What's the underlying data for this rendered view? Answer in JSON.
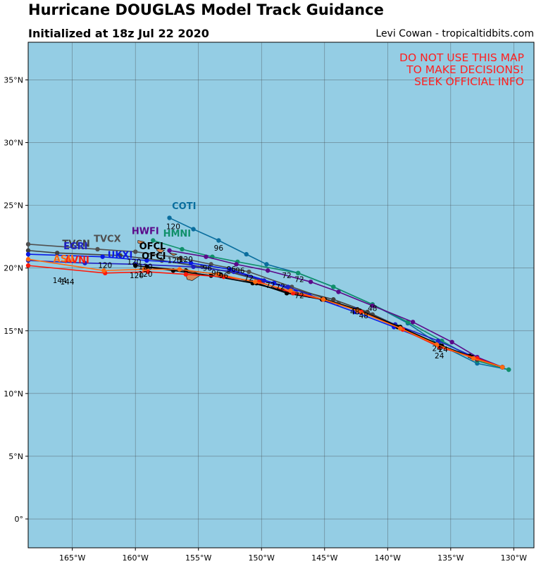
{
  "title": "Hurricane DOUGLAS Model Track Guidance",
  "subtitle": "Initialized at 18z Jul 22 2020",
  "credit": "Levi Cowan - tropicaltidbits.com",
  "warning": [
    "DO NOT USE THIS MAP",
    "TO MAKE DECISIONS!",
    "SEEK OFFICIAL INFO"
  ],
  "colors": {
    "ocean": "#94cde4",
    "land": "#d98a58",
    "warning": "#ff2020"
  },
  "map_extent": {
    "lon": [
      -168.5,
      -128.4
    ],
    "lat": [
      -2.3,
      38.0
    ]
  },
  "lon_ticks": [
    {
      "value": -165,
      "label": "165°W"
    },
    {
      "value": -160,
      "label": "160°W"
    },
    {
      "value": -155,
      "label": "155°W"
    },
    {
      "value": -150,
      "label": "150°W"
    },
    {
      "value": -145,
      "label": "145°W"
    },
    {
      "value": -140,
      "label": "140°W"
    },
    {
      "value": -135,
      "label": "135°W"
    },
    {
      "value": -130,
      "label": "130°W"
    }
  ],
  "lat_ticks": [
    {
      "value": 0,
      "label": "0°"
    },
    {
      "value": 5,
      "label": "5°N"
    },
    {
      "value": 10,
      "label": "10°N"
    },
    {
      "value": 15,
      "label": "15°N"
    },
    {
      "value": 20,
      "label": "20°N"
    },
    {
      "value": 25,
      "label": "25°N"
    },
    {
      "value": 30,
      "label": "30°N"
    },
    {
      "value": 35,
      "label": "35°N"
    }
  ],
  "tracks": [
    {
      "name": "COTI",
      "color": "#0a6e9e",
      "name_at": [
        -157.1,
        24.7
      ],
      "points": [
        [
          -130.4,
          11.9
        ],
        [
          -132.9,
          12.4
        ],
        [
          -135.9,
          13.9
        ],
        [
          -138.4,
          15.6
        ],
        [
          -141.2,
          17.1
        ],
        [
          -144.3,
          18.5
        ],
        [
          -147.1,
          19.6
        ],
        [
          -149.6,
          20.3
        ],
        [
          -151.2,
          21.1
        ],
        [
          -153.4,
          22.2
        ],
        [
          -155.4,
          23.1
        ],
        [
          -157.3,
          24.0
        ]
      ],
      "labels": [
        {
          "text": "120",
          "at": [
            -157.0,
            23.1
          ]
        },
        {
          "text": "96",
          "at": [
            -153.4,
            21.4
          ]
        }
      ]
    },
    {
      "name": "HMNI",
      "color": "#10906a",
      "name_at": [
        -157.8,
        22.5
      ],
      "points": [
        [
          -130.4,
          11.9
        ],
        [
          -132.9,
          12.6
        ],
        [
          -135.7,
          14.2
        ],
        [
          -138.4,
          15.7
        ],
        [
          -141.2,
          17.1
        ],
        [
          -144.3,
          18.5
        ],
        [
          -147.1,
          19.6
        ],
        [
          -151.9,
          20.5
        ],
        [
          -153.9,
          20.9
        ],
        [
          -156.3,
          21.5
        ],
        [
          -158.6,
          22.2
        ]
      ],
      "labels": [
        {
          "text": "72",
          "at": [
            -147.0,
            18.9
          ]
        }
      ]
    },
    {
      "name": "HWFI",
      "color": "#5a0a8a",
      "name_at": [
        -160.3,
        22.7
      ],
      "points": [
        [
          -130.9,
          12.1
        ],
        [
          -132.9,
          12.9
        ],
        [
          -134.9,
          14.1
        ],
        [
          -138.0,
          15.7
        ],
        [
          -141.2,
          17.0
        ],
        [
          -143.9,
          18.1
        ],
        [
          -146.1,
          18.9
        ],
        [
          -149.5,
          19.8
        ],
        [
          -152.0,
          20.3
        ],
        [
          -154.4,
          20.9
        ],
        [
          -157.3,
          21.4
        ]
      ],
      "labels": [
        {
          "text": "120",
          "at": [
            -156.9,
            20.4
          ]
        },
        {
          "text": "72",
          "at": [
            -148.0,
            19.2
          ]
        }
      ]
    },
    {
      "name": "TVCX",
      "color": "#505050",
      "name_at": [
        -163.3,
        22.1
      ],
      "points": [
        [
          -130.9,
          12.1
        ],
        [
          -132.9,
          12.7
        ],
        [
          -135.9,
          13.8
        ],
        [
          -139.2,
          15.3
        ],
        [
          -141.2,
          16.3
        ],
        [
          -143.9,
          17.2
        ],
        [
          -147.6,
          18.5
        ],
        [
          -151.0,
          19.7
        ],
        [
          -154.0,
          20.3
        ],
        [
          -156.4,
          20.8
        ],
        [
          -160.0,
          21.3
        ],
        [
          -163.0,
          21.5
        ],
        [
          -168.5,
          21.9
        ]
      ],
      "labels": [
        {
          "text": "120",
          "at": [
            -156.0,
            20.5
          ]
        },
        {
          "text": "96",
          "at": [
            -151.7,
            19.6
          ]
        }
      ]
    },
    {
      "name": "TVCN",
      "color": "#404040",
      "name_at": [
        -165.8,
        21.7
      ],
      "points": [
        [
          -130.9,
          12.1
        ],
        [
          -132.9,
          12.7
        ],
        [
          -135.9,
          13.8
        ],
        [
          -139.0,
          15.3
        ],
        [
          -141.6,
          16.5
        ],
        [
          -144.3,
          17.5
        ],
        [
          -147.8,
          18.4
        ],
        [
          -150.0,
          19.0
        ],
        [
          -152.6,
          19.7
        ],
        [
          -154.7,
          20.1
        ],
        [
          -157.9,
          20.6
        ],
        [
          -161.2,
          21.0
        ],
        [
          -166.2,
          21.2
        ],
        [
          -168.5,
          21.4
        ]
      ],
      "labels": [
        {
          "text": "96",
          "at": [
            -153.0,
            19.2
          ]
        }
      ]
    },
    {
      "name": "EGRI",
      "color": "#2020c0",
      "name_at": [
        -165.7,
        21.5
      ],
      "points": [
        [
          -130.9,
          12.1
        ],
        [
          -132.9,
          12.8
        ],
        [
          -136.0,
          14.2
        ],
        [
          -139.4,
          15.5
        ],
        [
          -142.6,
          16.7
        ],
        [
          -145.2,
          17.5
        ],
        [
          -147.9,
          18.5
        ],
        [
          -149.8,
          19.0
        ],
        [
          -152.2,
          19.7
        ],
        [
          -155.4,
          20.1
        ],
        [
          -160.0,
          20.3
        ],
        [
          -164.0,
          20.4
        ],
        [
          -168.5,
          20.6
        ]
      ],
      "labels": [
        {
          "text": "72",
          "at": [
            -148.5,
            18.3
          ]
        }
      ]
    },
    {
      "name": "UKXI",
      "color": "#0a1ae6",
      "name_at": [
        -162.2,
        20.8
      ],
      "points": [
        [
          -130.9,
          12.1
        ],
        [
          -132.9,
          12.8
        ],
        [
          -136.0,
          13.9
        ],
        [
          -139.5,
          15.3
        ],
        [
          -142.6,
          16.5
        ],
        [
          -146.2,
          17.8
        ],
        [
          -147.3,
          18.1
        ],
        [
          -149.0,
          18.8
        ],
        [
          -152.5,
          19.9
        ],
        [
          -155.6,
          20.4
        ],
        [
          -159.1,
          20.6
        ],
        [
          -162.6,
          20.9
        ],
        [
          -168.5,
          21.1
        ]
      ],
      "labels": [
        {
          "text": "120",
          "at": [
            -160.1,
            20.3
          ]
        }
      ]
    },
    {
      "name": "OFCL",
      "color": "#000000",
      "name_at": [
        -159.7,
        21.5
      ],
      "points": [
        [
          -130.9,
          12.1
        ],
        [
          -133.5,
          13.0
        ],
        [
          -135.8,
          13.8
        ],
        [
          -139.2,
          15.3
        ],
        [
          -142.4,
          16.7
        ],
        [
          -145.0,
          17.5
        ],
        [
          -147.5,
          18.0
        ],
        [
          -150.7,
          18.8
        ],
        [
          -154.0,
          19.4
        ],
        [
          -157.0,
          19.8
        ],
        [
          -160.0,
          20.2
        ]
      ],
      "labels": [
        {
          "text": "120",
          "at": [
            -159.2,
            19.9
          ]
        },
        {
          "text": "72",
          "at": [
            -147.0,
            17.6
          ]
        }
      ]
    },
    {
      "name": "OFCI",
      "color": "#000000",
      "name_at": [
        -159.5,
        20.7
      ],
      "points": [
        [
          -130.9,
          12.1
        ],
        [
          -133.3,
          12.9
        ],
        [
          -135.7,
          13.8
        ],
        [
          -139.0,
          15.3
        ],
        [
          -142.2,
          16.6
        ],
        [
          -145.2,
          17.5
        ],
        [
          -148.0,
          18.0
        ],
        [
          -150.4,
          18.8
        ],
        [
          -153.3,
          19.5
        ],
        [
          -156.0,
          19.8
        ],
        [
          -159.1,
          20.1
        ]
      ],
      "labels": [
        {
          "text": "120",
          "at": [
            -159.9,
            19.2
          ]
        },
        {
          "text": "72",
          "at": [
            -149.3,
            18.4
          ]
        }
      ]
    },
    {
      "name": "AVNI",
      "color": "#ff1a0a",
      "name_at": [
        -165.6,
        20.4
      ],
      "points": [
        [
          -130.9,
          12.1
        ],
        [
          -132.9,
          12.8
        ],
        [
          -135.9,
          13.7
        ],
        [
          -138.8,
          15.1
        ],
        [
          -142.1,
          16.5
        ],
        [
          -145.1,
          17.5
        ],
        [
          -147.5,
          18.0
        ],
        [
          -150.2,
          18.9
        ],
        [
          -153.0,
          19.3
        ],
        [
          -156.0,
          19.5
        ],
        [
          -159.0,
          19.7
        ],
        [
          -162.4,
          19.6
        ],
        [
          -168.5,
          20.2
        ]
      ],
      "labels": [
        {
          "text": "144",
          "at": [
            -166.0,
            18.8
          ]
        },
        {
          "text": "120",
          "at": [
            -159.2,
            19.3
          ]
        },
        {
          "text": "96",
          "at": [
            -153.6,
            19.4
          ]
        }
      ]
    },
    {
      "name": "ASII",
      "color": "#ff6a10",
      "name_at": [
        -166.5,
        20.5
      ],
      "points": [
        [
          -130.9,
          12.1
        ],
        [
          -133.2,
          12.8
        ],
        [
          -136.1,
          13.9
        ],
        [
          -139.0,
          15.2
        ],
        [
          -142.4,
          16.6
        ],
        [
          -145.1,
          17.5
        ],
        [
          -147.7,
          18.2
        ],
        [
          -150.5,
          18.9
        ],
        [
          -153.5,
          19.5
        ],
        [
          -156.5,
          19.9
        ],
        [
          -159.3,
          19.9
        ],
        [
          -162.5,
          19.8
        ],
        [
          -168.5,
          20.7
        ]
      ],
      "labels": [
        {
          "text": "144",
          "at": [
            -165.4,
            18.7
          ]
        },
        {
          "text": "120",
          "at": [
            -162.4,
            20.0
          ]
        }
      ]
    }
  ],
  "extra_labels": [
    {
      "text": "48",
      "at": [
        -142.6,
        16.3
      ]
    },
    {
      "text": "48",
      "at": [
        -141.2,
        16.6
      ]
    },
    {
      "text": "48",
      "at": [
        -141.9,
        16.0
      ]
    },
    {
      "text": "24",
      "at": [
        -136.1,
        13.4
      ]
    },
    {
      "text": "24",
      "at": [
        -135.6,
        13.3
      ]
    },
    {
      "text": "24",
      "at": [
        -135.9,
        12.8
      ]
    },
    {
      "text": "72",
      "at": [
        -151.0,
        19.0
      ]
    },
    {
      "text": "96",
      "at": [
        -154.3,
        19.8
      ]
    },
    {
      "text": "96",
      "at": [
        -152.4,
        19.7
      ]
    }
  ],
  "islands": [
    [
      [
        -155.9,
        19.9
      ],
      [
        -155.1,
        19.6
      ],
      [
        -154.9,
        19.4
      ],
      [
        -155.5,
        19.0
      ],
      [
        -155.9,
        19.1
      ],
      [
        -156.0,
        19.5
      ]
    ],
    [
      [
        -156.7,
        20.9
      ],
      [
        -156.0,
        20.7
      ],
      [
        -156.3,
        20.6
      ],
      [
        -156.7,
        20.7
      ]
    ],
    [
      [
        -157.3,
        21.2
      ],
      [
        -156.7,
        21.1
      ],
      [
        -157.0,
        21.0
      ]
    ],
    [
      [
        -158.3,
        21.6
      ],
      [
        -157.7,
        21.4
      ],
      [
        -158.0,
        21.2
      ],
      [
        -158.3,
        21.4
      ]
    ],
    [
      [
        -159.8,
        22.2
      ],
      [
        -159.3,
        22.1
      ],
      [
        -159.5,
        21.9
      ],
      [
        -159.8,
        22.0
      ]
    ]
  ]
}
